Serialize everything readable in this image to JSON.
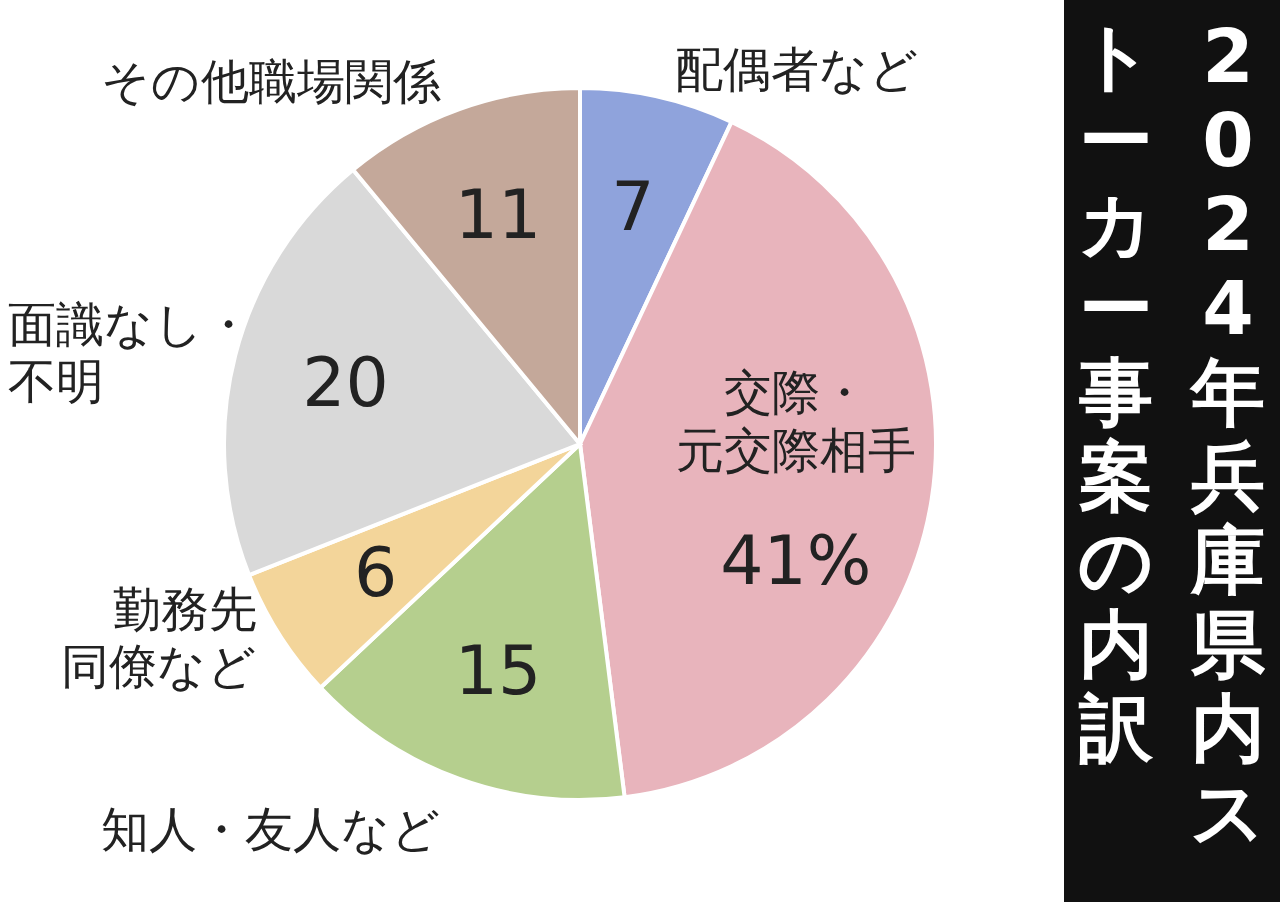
{
  "chart_data": {
    "type": "pie",
    "title": "2024年兵庫県内ストーカー事案の内訳",
    "categories": [
      "配偶者など",
      "交際・元交際相手",
      "知人・友人など",
      "勤務先同僚など",
      "面識なし・不明",
      "その他職場関係"
    ],
    "values": [
      7,
      41,
      15,
      6,
      20,
      11
    ],
    "value_labels": [
      "7",
      "41%",
      "15",
      "6",
      "20",
      "11"
    ],
    "colors": [
      "#8fa3dc",
      "#e8b4bc",
      "#b5cf8e",
      "#f3d59a",
      "#d9d9d9",
      "#c4a89a"
    ]
  }
}
